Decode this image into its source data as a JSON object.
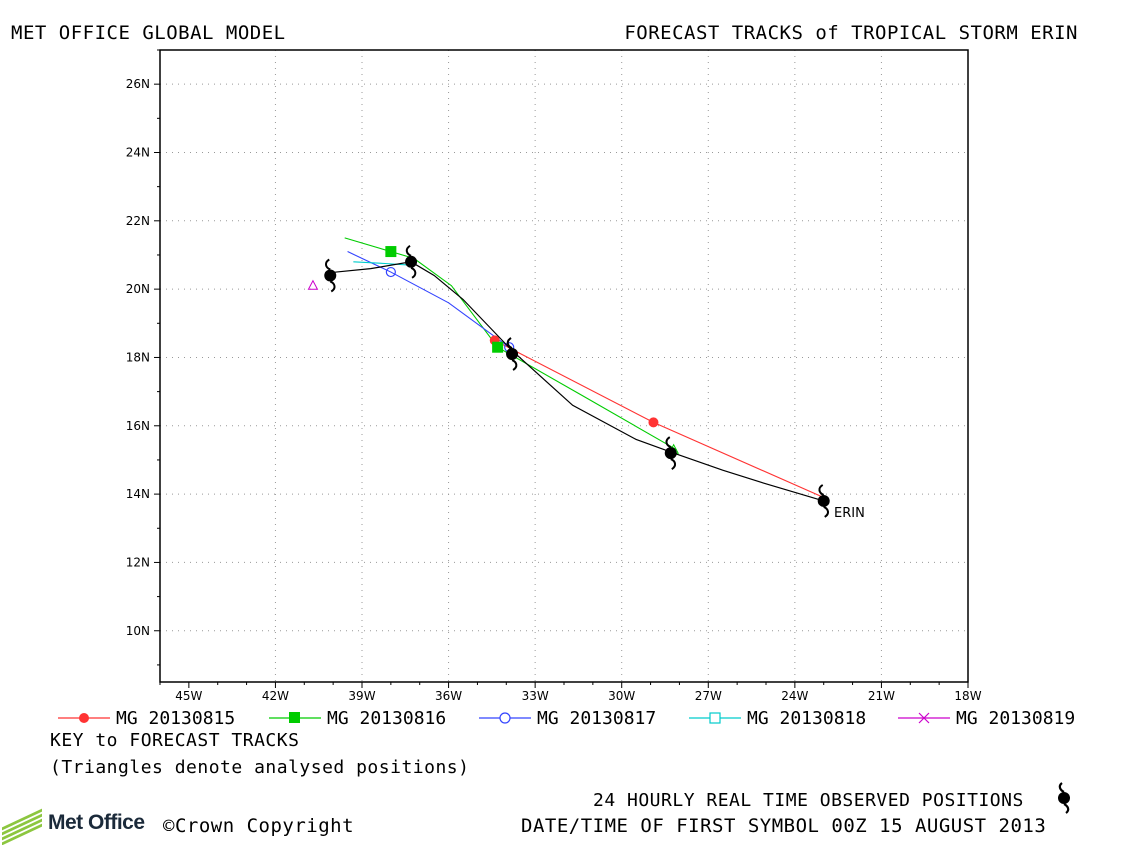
{
  "header": {
    "left_title": "MET OFFICE GLOBAL MODEL",
    "right_title": "FORECAST TRACKS of TROPICAL STORM ERIN"
  },
  "chart_data": {
    "type": "line",
    "title": "FORECAST TRACKS of TROPICAL STORM ERIN",
    "xlabel": "",
    "ylabel": "",
    "xlim": [
      -46,
      -18
    ],
    "ylim": [
      8.5,
      27
    ],
    "grid": true,
    "x_ticks": [
      -45,
      -42,
      -39,
      -36,
      -33,
      -30,
      -27,
      -24,
      -21,
      -18
    ],
    "x_tick_labels": [
      "45W",
      "42W",
      "39W",
      "36W",
      "33W",
      "30W",
      "27W",
      "24W",
      "21W",
      "18W"
    ],
    "y_ticks": [
      10,
      12,
      14,
      16,
      18,
      20,
      22,
      24,
      26
    ],
    "y_tick_labels": [
      "10N",
      "12N",
      "14N",
      "16N",
      "18N",
      "20N",
      "22N",
      "24N",
      "26N"
    ],
    "legend_position": "below",
    "series": [
      {
        "name": "MG 20130815",
        "color": "#ff3333",
        "marker": "filled-circle",
        "points": [
          [
            -23.0,
            13.9
          ],
          [
            -28.9,
            16.1
          ],
          [
            -34.4,
            18.5
          ]
        ],
        "marker_points": [
          [
            -28.9,
            16.1
          ],
          [
            -34.4,
            18.5
          ]
        ]
      },
      {
        "name": "MG 20130816",
        "color": "#00cc00",
        "marker": "filled-square",
        "points": [
          [
            -28.1,
            15.3
          ],
          [
            -31.4,
            16.9
          ],
          [
            -34.3,
            18.3
          ],
          [
            -35.9,
            20.1
          ],
          [
            -37.2,
            20.9
          ],
          [
            -38.0,
            21.1
          ],
          [
            -39.6,
            21.5
          ]
        ],
        "marker_points": [
          [
            -34.3,
            18.3
          ],
          [
            -38.0,
            21.1
          ]
        ]
      },
      {
        "name": "MG 20130817",
        "color": "#3344ff",
        "marker": "open-circle",
        "points": [
          [
            -33.9,
            18.3
          ],
          [
            -36.0,
            19.6
          ],
          [
            -38.0,
            20.5
          ],
          [
            -39.5,
            21.1
          ]
        ],
        "marker_points": [
          [
            -33.9,
            18.3
          ],
          [
            -38.0,
            20.5
          ]
        ]
      },
      {
        "name": "MG 20130818",
        "color": "#00cccc",
        "marker": "open-square",
        "points": [
          [
            -37.3,
            20.7
          ],
          [
            -38.2,
            20.75
          ],
          [
            -39.3,
            20.8
          ]
        ],
        "marker_points": []
      },
      {
        "name": "MG 20130819",
        "color": "#cc00cc",
        "marker": "x",
        "points": [],
        "marker_points": []
      }
    ],
    "observed_track": {
      "color": "#000000",
      "storm_label": "ERIN",
      "points": [
        [
          -23.0,
          13.8
        ],
        [
          -25.0,
          14.3
        ],
        [
          -26.5,
          14.7
        ],
        [
          -28.2,
          15.2
        ],
        [
          -29.5,
          15.6
        ],
        [
          -31.7,
          16.6
        ],
        [
          -33.8,
          18.2
        ],
        [
          -35.5,
          19.7
        ],
        [
          -36.5,
          20.4
        ],
        [
          -37.3,
          20.8
        ],
        [
          -38.7,
          20.6
        ],
        [
          -39.9,
          20.5
        ],
        [
          -40.2,
          20.45
        ]
      ],
      "storm_symbols": [
        [
          -23.0,
          13.8
        ],
        [
          -28.3,
          15.2
        ],
        [
          -33.8,
          18.1
        ],
        [
          -37.3,
          20.8
        ],
        [
          -40.1,
          20.4
        ]
      ]
    },
    "analysed_positions": [
      {
        "x": -40.7,
        "y": 20.1,
        "color": "#cc00cc"
      },
      {
        "x": -28.2,
        "y": 15.3,
        "color": "#00cc00"
      }
    ]
  },
  "legend": {
    "items": [
      {
        "label": "MG 20130815"
      },
      {
        "label": "MG 20130816"
      },
      {
        "label": "MG 20130817"
      },
      {
        "label": "MG 20130818"
      },
      {
        "label": "MG 20130819"
      }
    ]
  },
  "key": {
    "title": "KEY to FORECAST TRACKS",
    "note": "(Triangles denote analysed positions)"
  },
  "footer": {
    "observed_label": "24 HOURLY REAL TIME OBSERVED POSITIONS",
    "datetime_label": "DATE/TIME OF FIRST SYMBOL 00Z 15 AUGUST 2013",
    "logo_text": "Met Office",
    "copyright": "©Crown Copyright"
  }
}
